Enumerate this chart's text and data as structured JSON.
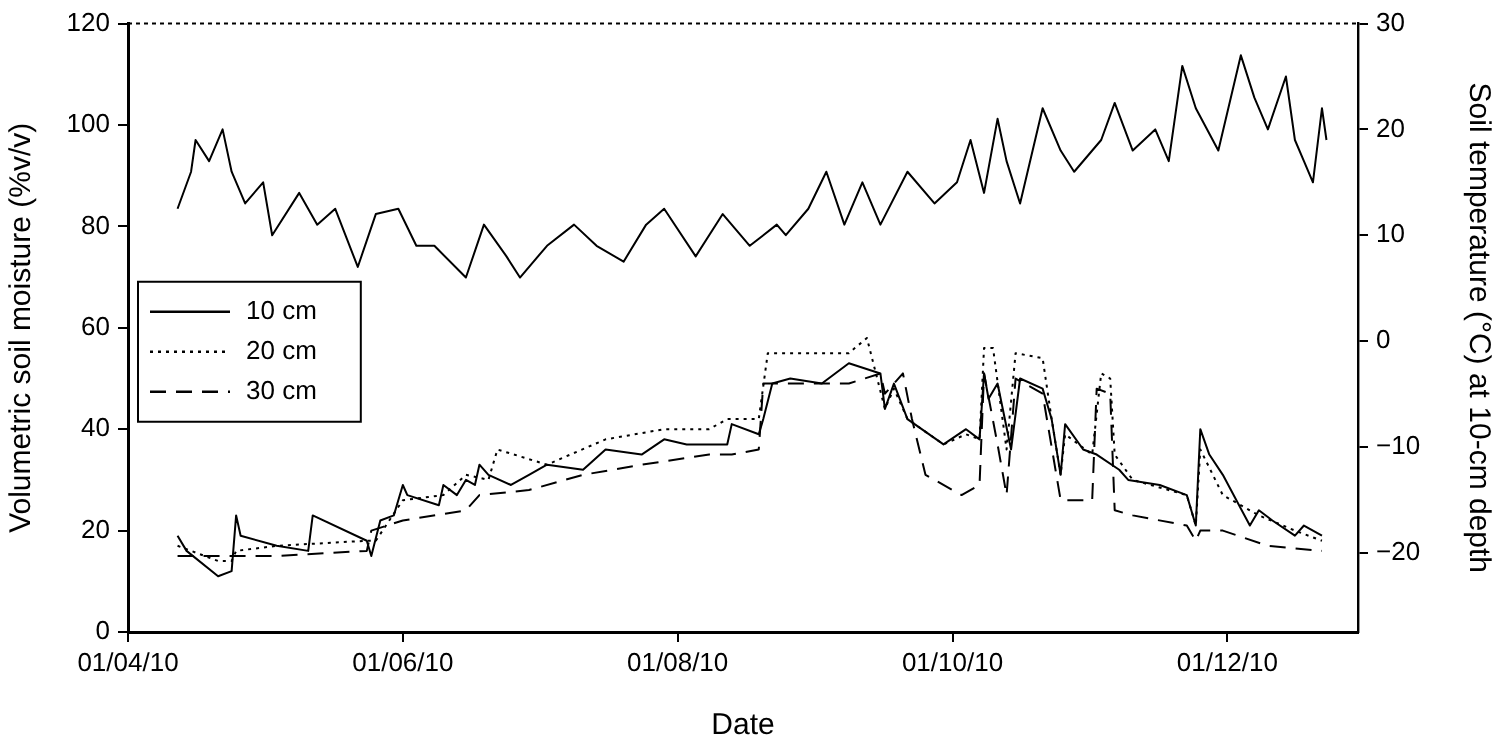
{
  "chart_data": {
    "type": "line",
    "xlabel": "Date",
    "ylabel": "Volumetric soil moisture (%v/v)",
    "y2label": "Soil temperature (°C) at 10-cm depth",
    "xlim": [
      "2010-04-01",
      "2010-12-30"
    ],
    "xticks": [
      {
        "value": "2010-04-01",
        "label": "01/04/10"
      },
      {
        "value": "2010-06-01",
        "label": "01/06/10"
      },
      {
        "value": "2010-08-01",
        "label": "01/08/10"
      },
      {
        "value": "2010-10-01",
        "label": "01/10/10"
      },
      {
        "value": "2010-12-01",
        "label": "01/12/10"
      }
    ],
    "ylim": [
      0,
      120
    ],
    "yticks": [
      0,
      20,
      40,
      60,
      80,
      100,
      120
    ],
    "y2lim": [
      -27.5,
      30
    ],
    "y2ticks": [
      {
        "value": -20,
        "label": "−20"
      },
      {
        "value": -10,
        "label": "−10"
      },
      0,
      10,
      20,
      30
    ],
    "grid": false,
    "legend": "left",
    "marker": "none",
    "series": [
      {
        "name": "10 cm",
        "color": "#000000",
        "line_style": "solid",
        "x": [
          "2010-04-12",
          "2010-04-14",
          "2010-04-21",
          "2010-04-24",
          "2010-04-25",
          "2010-04-26",
          "2010-05-04",
          "2010-05-11",
          "2010-05-12",
          "2010-05-24",
          "2010-05-25",
          "2010-05-27",
          "2010-05-30",
          "2010-06-01",
          "2010-06-02",
          "2010-06-09",
          "2010-06-10",
          "2010-06-13",
          "2010-06-15",
          "2010-06-17",
          "2010-06-18",
          "2010-06-20",
          "2010-06-25",
          "2010-06-29",
          "2010-07-03",
          "2010-07-11",
          "2010-07-16",
          "2010-07-24",
          "2010-07-29",
          "2010-08-03",
          "2010-08-08",
          "2010-08-12",
          "2010-08-13",
          "2010-08-19",
          "2010-08-20",
          "2010-08-22",
          "2010-08-26",
          "2010-09-02",
          "2010-09-08",
          "2010-09-15",
          "2010-09-16",
          "2010-09-18",
          "2010-09-21",
          "2010-09-29",
          "2010-10-04",
          "2010-10-07",
          "2010-10-08",
          "2010-10-09",
          "2010-10-11",
          "2010-10-14",
          "2010-10-16",
          "2010-10-21",
          "2010-10-23",
          "2010-10-25",
          "2010-10-26",
          "2010-10-30",
          "2010-11-02",
          "2010-11-07",
          "2010-11-09",
          "2010-11-16",
          "2010-11-22",
          "2010-11-24",
          "2010-11-25",
          "2010-11-27",
          "2010-11-30",
          "2010-12-06",
          "2010-12-08",
          "2010-12-11",
          "2010-12-16",
          "2010-12-18",
          "2010-12-22"
        ],
        "values": [
          19,
          16,
          11,
          12,
          23,
          19,
          17,
          16,
          23,
          18,
          15,
          22,
          23,
          29,
          27,
          25,
          29,
          27,
          30,
          29,
          33,
          31,
          29,
          31,
          33,
          32,
          36,
          35,
          38,
          37,
          37,
          37,
          41,
          39,
          42,
          49,
          50,
          49,
          53,
          51,
          44,
          49,
          42,
          37,
          40,
          38,
          51,
          46,
          49,
          36,
          50,
          48,
          42,
          31,
          41,
          36,
          35,
          32,
          30,
          29,
          27,
          21,
          40,
          35,
          31,
          21,
          24,
          22,
          19,
          21,
          19
        ]
      },
      {
        "name": "20 cm",
        "color": "#000000",
        "line_style": "dotted",
        "x": [
          "2010-04-12",
          "2010-04-21",
          "2010-04-24",
          "2010-04-25",
          "2010-05-04",
          "2010-05-24",
          "2010-05-26",
          "2010-06-01",
          "2010-06-10",
          "2010-06-15",
          "2010-06-20",
          "2010-06-22",
          "2010-07-03",
          "2010-07-16",
          "2010-07-29",
          "2010-08-08",
          "2010-08-12",
          "2010-08-19",
          "2010-08-21",
          "2010-08-27",
          "2010-09-08",
          "2010-09-12",
          "2010-09-16",
          "2010-09-18",
          "2010-09-21",
          "2010-09-29",
          "2010-10-04",
          "2010-10-07",
          "2010-10-08",
          "2010-10-10",
          "2010-10-13",
          "2010-10-15",
          "2010-10-21",
          "2010-10-23",
          "2010-10-25",
          "2010-10-26",
          "2010-11-01",
          "2010-11-03",
          "2010-11-05",
          "2010-11-06",
          "2010-11-10",
          "2010-11-22",
          "2010-11-24",
          "2010-11-25",
          "2010-11-30",
          "2010-12-08",
          "2010-12-16",
          "2010-12-22"
        ],
        "values": [
          17,
          14,
          14,
          16,
          17,
          18,
          18,
          26,
          27,
          31,
          30,
          36,
          33,
          38,
          40,
          40,
          42,
          42,
          55,
          55,
          55,
          58,
          44,
          48,
          42,
          37,
          39,
          38,
          56,
          56,
          36,
          55,
          54,
          42,
          31,
          39,
          35,
          51,
          50,
          35,
          30,
          27,
          21,
          36,
          27,
          23,
          20,
          18
        ]
      },
      {
        "name": "30 cm",
        "color": "#000000",
        "line_style": "dashed",
        "x": [
          "2010-04-12",
          "2010-04-24",
          "2010-05-04",
          "2010-05-24",
          "2010-05-25",
          "2010-06-01",
          "2010-06-15",
          "2010-06-18",
          "2010-06-29",
          "2010-07-11",
          "2010-07-24",
          "2010-08-08",
          "2010-08-13",
          "2010-08-19",
          "2010-08-20",
          "2010-08-27",
          "2010-09-08",
          "2010-09-15",
          "2010-09-16",
          "2010-09-20",
          "2010-09-22",
          "2010-09-25",
          "2010-10-03",
          "2010-10-07",
          "2010-10-08",
          "2010-10-11",
          "2010-10-13",
          "2010-10-15",
          "2010-10-21",
          "2010-10-25",
          "2010-10-30",
          "2010-11-01",
          "2010-11-02",
          "2010-11-05",
          "2010-11-06",
          "2010-11-10",
          "2010-11-22",
          "2010-11-24",
          "2010-11-25",
          "2010-11-30",
          "2010-12-10",
          "2010-12-22"
        ],
        "values": [
          15,
          15,
          15,
          16,
          20,
          22,
          24,
          27,
          28,
          31,
          33,
          35,
          35,
          36,
          49,
          49,
          49,
          51,
          47,
          51,
          42,
          31,
          27,
          29,
          51,
          37,
          27,
          50,
          47,
          26,
          26,
          26,
          48,
          47,
          24,
          23,
          21,
          18,
          20,
          20,
          17,
          16
        ]
      },
      {
        "type": "line",
        "axis": "y2",
        "color": "#000000",
        "line_style": "solid",
        "x": [
          "2010-04-12",
          "2010-04-15",
          "2010-04-16",
          "2010-04-19",
          "2010-04-22",
          "2010-04-24",
          "2010-04-27",
          "2010-05-01",
          "2010-05-03",
          "2010-05-09",
          "2010-05-13",
          "2010-05-17",
          "2010-05-22",
          "2010-05-26",
          "2010-05-31",
          "2010-06-04",
          "2010-06-08",
          "2010-06-15",
          "2010-06-19",
          "2010-06-24",
          "2010-06-27",
          "2010-07-03",
          "2010-07-09",
          "2010-07-14",
          "2010-07-20",
          "2010-07-25",
          "2010-07-29",
          "2010-08-05",
          "2010-08-11",
          "2010-08-17",
          "2010-08-23",
          "2010-08-25",
          "2010-08-30",
          "2010-09-03",
          "2010-09-07",
          "2010-09-11",
          "2010-09-15",
          "2010-09-21",
          "2010-09-27",
          "2010-10-02",
          "2010-10-05",
          "2010-10-08",
          "2010-10-11",
          "2010-10-13",
          "2010-10-16",
          "2010-10-21",
          "2010-10-25",
          "2010-10-28",
          "2010-11-03",
          "2010-11-06",
          "2010-11-10",
          "2010-11-15",
          "2010-11-18",
          "2010-11-21",
          "2010-11-24",
          "2010-11-29",
          "2010-12-04",
          "2010-12-07",
          "2010-12-10",
          "2010-12-14",
          "2010-12-16",
          "2010-12-18",
          "2010-12-20",
          "2010-12-22",
          "2010-12-23"
        ],
        "values": [
          12.5,
          16,
          19,
          17,
          20,
          16,
          13,
          15,
          10,
          14,
          11,
          12.5,
          7,
          12,
          12.5,
          9,
          9,
          6,
          11,
          8,
          6,
          9,
          11,
          9,
          7.5,
          11,
          12.5,
          8,
          12,
          9,
          11,
          10,
          12.5,
          16,
          11,
          15,
          11,
          16,
          13,
          15,
          19,
          14,
          21,
          17,
          13,
          22,
          18,
          16,
          19,
          22.5,
          18,
          20,
          17,
          26,
          22,
          18,
          27,
          23,
          20,
          25,
          19,
          17,
          15,
          22,
          19
        ]
      }
    ]
  }
}
